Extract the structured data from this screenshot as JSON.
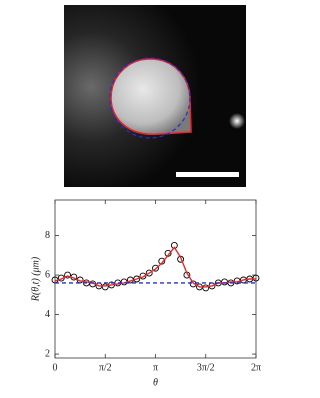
{
  "chart_data": {
    "type": "line",
    "y_label": "R(θ,t) (μm)",
    "x_label": "θ",
    "x": [
      0,
      0.196,
      0.393,
      0.589,
      0.785,
      0.982,
      1.178,
      1.374,
      1.571,
      1.767,
      1.963,
      2.16,
      2.356,
      2.553,
      2.749,
      2.945,
      3.142,
      3.338,
      3.534,
      3.731,
      3.927,
      4.123,
      4.32,
      4.516,
      4.712,
      4.909,
      5.105,
      5.301,
      5.498,
      5.694,
      5.89,
      6.087,
      6.283
    ],
    "series": [
      {
        "color": "#000000",
        "marker": "circle",
        "line": false,
        "values": [
          5.75,
          5.85,
          6.0,
          5.9,
          5.75,
          5.6,
          5.55,
          5.45,
          5.4,
          5.5,
          5.6,
          5.65,
          5.75,
          5.8,
          5.95,
          6.1,
          6.35,
          6.7,
          7.1,
          7.5,
          6.8,
          6.0,
          5.55,
          5.4,
          5.35,
          5.45,
          5.6,
          5.65,
          5.6,
          5.7,
          5.75,
          5.8,
          5.85
        ]
      },
      {
        "color": "#e8262b",
        "marker": null,
        "line": true,
        "values": [
          5.7,
          5.8,
          5.95,
          5.85,
          5.7,
          5.65,
          5.6,
          5.45,
          5.45,
          5.5,
          5.55,
          5.6,
          5.7,
          5.8,
          5.9,
          6.1,
          6.3,
          6.6,
          7.0,
          7.4,
          6.9,
          6.1,
          5.6,
          5.4,
          5.4,
          5.45,
          5.6,
          5.6,
          5.65,
          5.65,
          5.75,
          5.8,
          5.8
        ]
      },
      {
        "color": "#2b2bd6",
        "marker": null,
        "line": true,
        "dashed": true,
        "values": [
          5.6,
          5.6,
          5.6,
          5.6,
          5.6,
          5.6,
          5.6,
          5.6,
          5.6,
          5.6,
          5.6,
          5.6,
          5.6,
          5.6,
          5.6,
          5.6,
          5.6,
          5.6,
          5.6,
          5.6,
          5.6,
          5.6,
          5.6,
          5.6,
          5.6,
          5.6,
          5.6,
          5.6,
          5.6,
          5.6,
          5.6,
          5.6,
          5.6
        ]
      }
    ],
    "xlim": [
      0,
      6.2832
    ],
    "xticks": [
      0,
      {
        "value": 1.5708,
        "label": "π/2"
      },
      {
        "value": 3.1416,
        "label": "π"
      },
      {
        "value": 4.7124,
        "label": "3π/2"
      },
      {
        "value": 6.2832,
        "label": "2π"
      }
    ],
    "ylim": [
      1.8,
      9.8
    ],
    "yticks": [
      2,
      4,
      6,
      8
    ],
    "grid": false
  }
}
